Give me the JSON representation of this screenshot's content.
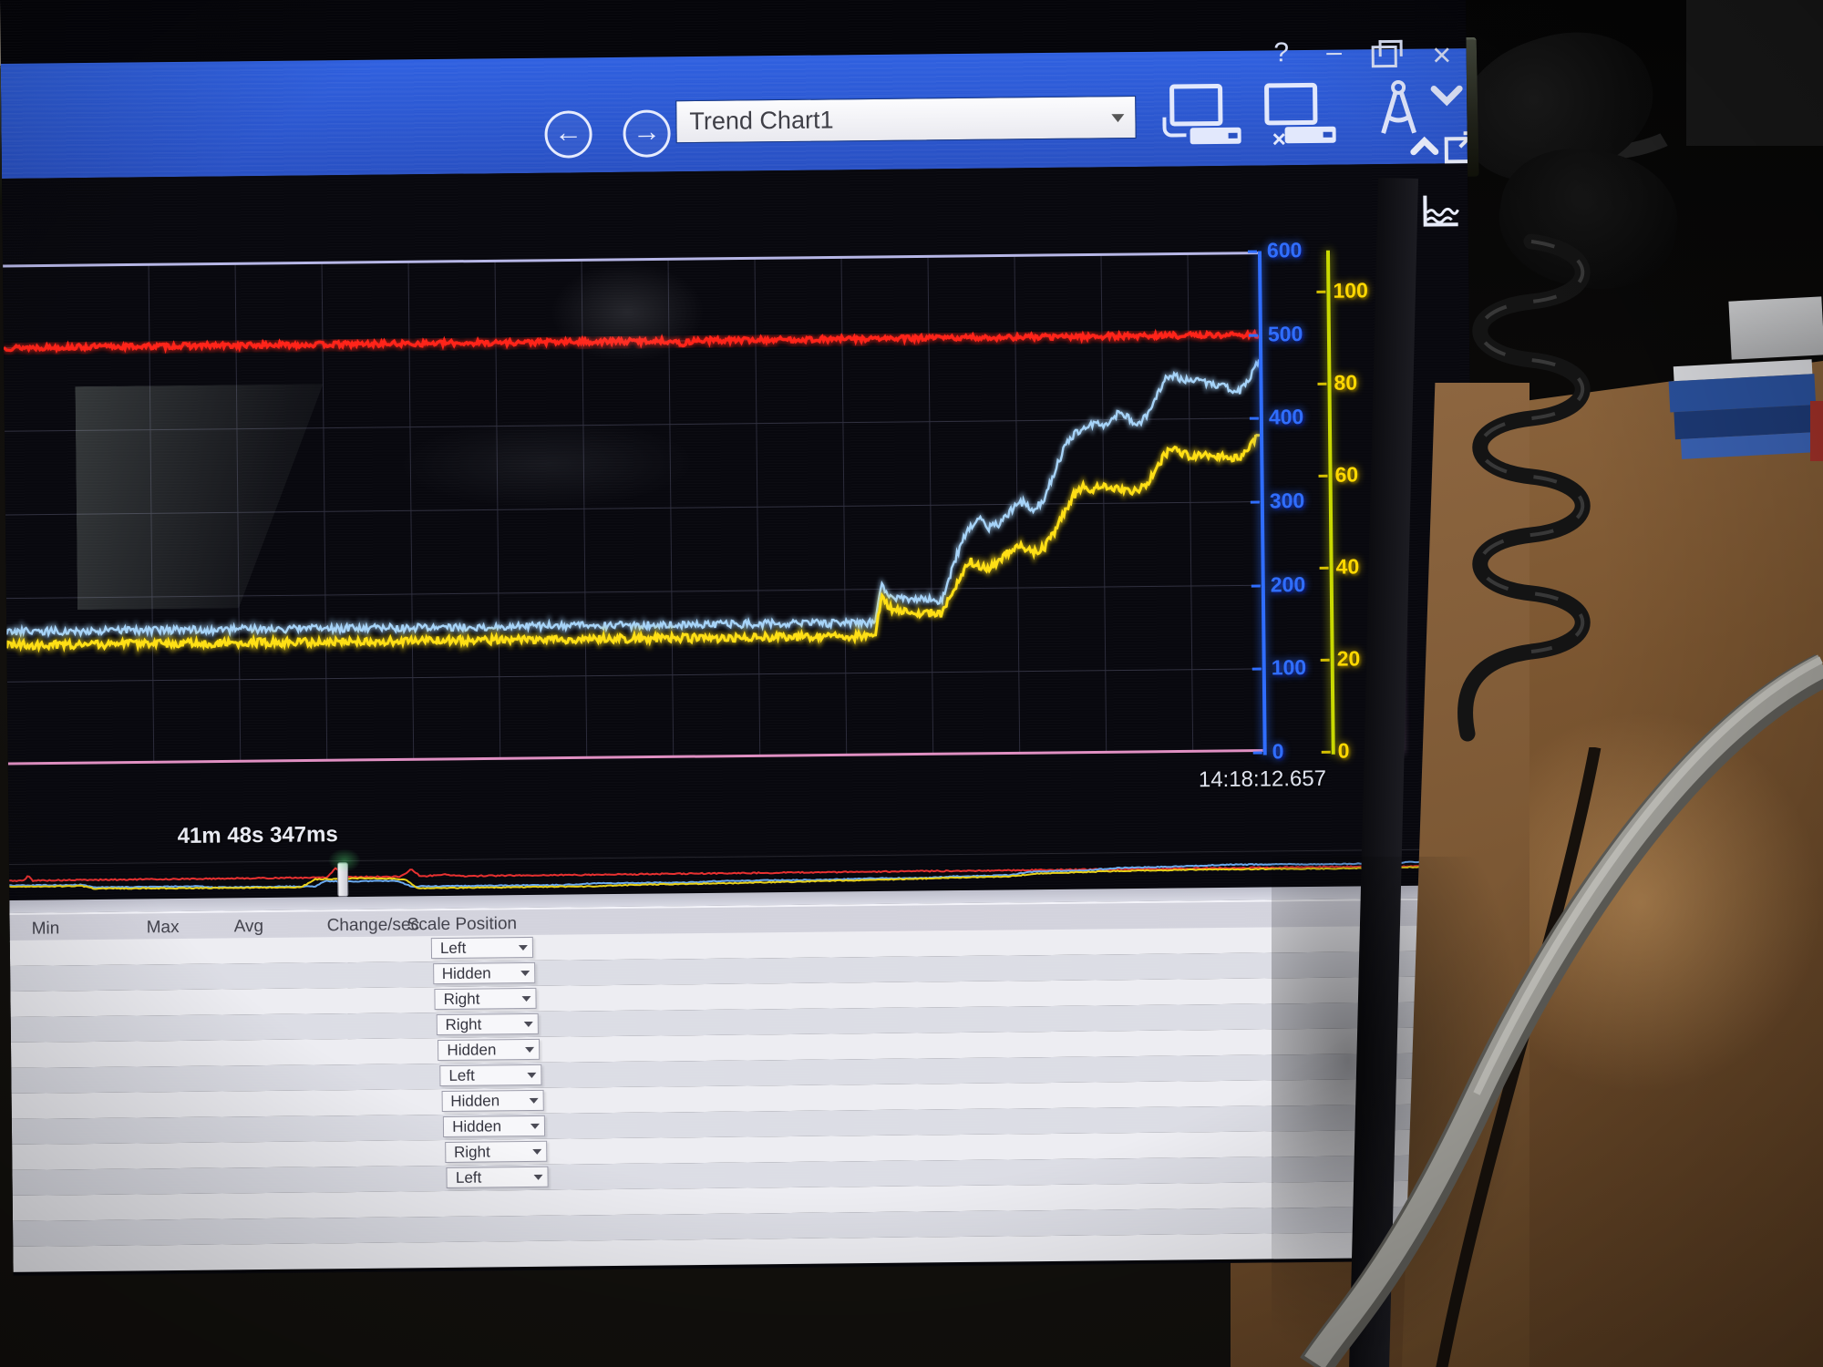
{
  "window": {
    "nav": {
      "back_icon": "←",
      "forward_icon": "→"
    },
    "chart_selector": {
      "value": "Trend Chart1"
    },
    "controls": {
      "help": "?",
      "minimize": "–",
      "close": "×"
    },
    "toolbar_icons": [
      "connect-device",
      "disconnect-device",
      "design-tools",
      "chevron-down"
    ]
  },
  "chart": {
    "end_timestamp": "14:18:12.657",
    "visible_span": "41m 48s 347ms",
    "left_axis": {
      "color": "#2f6dff",
      "ticks": [
        "600",
        "500",
        "400",
        "300",
        "200",
        "100",
        "0"
      ]
    },
    "right_axis": {
      "color": "#ffd800",
      "ticks": [
        "100",
        "80",
        "60",
        "40",
        "20",
        "0"
      ]
    },
    "digital_axis": {
      "top": "True",
      "bottom": "False",
      "color": "#cdb9e8"
    }
  },
  "chart_data": {
    "type": "line",
    "title": "Trend Chart1",
    "x_axis": {
      "span": "41m 48s 347ms",
      "end_time": "14:18:12.657",
      "tick_labels_visible": false
    },
    "left_axis_range": [
      0,
      600
    ],
    "right_axis_range": [
      0,
      100
    ],
    "grid": {
      "on": true
    },
    "series": [
      {
        "name": "red-trace",
        "axis": "left",
        "color": "#ff2318",
        "width": 3.4,
        "noise": 3.2,
        "points": [
          [
            0,
            500
          ],
          [
            0.53,
            500
          ],
          [
            0.54,
            496
          ],
          [
            0.55,
            500
          ],
          [
            1,
            500
          ]
        ]
      },
      {
        "name": "blue-trace",
        "axis": "left",
        "color": "#a6d3f8",
        "width": 2.4,
        "noise": 4.5,
        "points": [
          [
            0,
            160
          ],
          [
            0.692,
            160
          ],
          [
            0.697,
            207
          ],
          [
            0.703,
            192
          ],
          [
            0.71,
            188
          ],
          [
            0.745,
            186
          ],
          [
            0.752,
            215
          ],
          [
            0.758,
            242
          ],
          [
            0.764,
            262
          ],
          [
            0.77,
            275
          ],
          [
            0.776,
            284
          ],
          [
            0.782,
            272
          ],
          [
            0.792,
            277
          ],
          [
            0.8,
            291
          ],
          [
            0.806,
            299
          ],
          [
            0.812,
            303
          ],
          [
            0.818,
            294
          ],
          [
            0.826,
            301
          ],
          [
            0.836,
            338
          ],
          [
            0.846,
            372
          ],
          [
            0.854,
            386
          ],
          [
            0.862,
            393
          ],
          [
            0.87,
            397
          ],
          [
            0.876,
            390
          ],
          [
            0.882,
            401
          ],
          [
            0.888,
            409
          ],
          [
            0.898,
            399
          ],
          [
            0.904,
            396
          ],
          [
            0.91,
            404
          ],
          [
            0.918,
            428
          ],
          [
            0.926,
            450
          ],
          [
            0.932,
            453
          ],
          [
            0.94,
            446
          ],
          [
            0.948,
            444
          ],
          [
            0.954,
            448
          ],
          [
            0.96,
            441
          ],
          [
            0.968,
            439
          ],
          [
            0.976,
            437
          ],
          [
            0.984,
            432
          ],
          [
            0.99,
            442
          ],
          [
            1,
            468
          ]
        ]
      },
      {
        "name": "yellow-trace",
        "axis": "right",
        "color": "#ffdf14",
        "width": 3,
        "noise": 0.8,
        "points": [
          [
            0,
            24
          ],
          [
            0.692,
            24
          ],
          [
            0.697,
            31.5
          ],
          [
            0.705,
            29.5
          ],
          [
            0.72,
            28.7
          ],
          [
            0.745,
            28.4
          ],
          [
            0.755,
            33
          ],
          [
            0.762,
            36.5
          ],
          [
            0.768,
            38.8
          ],
          [
            0.774,
            38
          ],
          [
            0.782,
            37.2
          ],
          [
            0.79,
            38.4
          ],
          [
            0.798,
            40.2
          ],
          [
            0.806,
            41.8
          ],
          [
            0.812,
            41
          ],
          [
            0.82,
            40.5
          ],
          [
            0.828,
            41.4
          ],
          [
            0.838,
            45.5
          ],
          [
            0.85,
            51.3
          ],
          [
            0.858,
            53.5
          ],
          [
            0.866,
            52.5
          ],
          [
            0.874,
            54
          ],
          [
            0.882,
            53.2
          ],
          [
            0.89,
            52.7
          ],
          [
            0.898,
            52.3
          ],
          [
            0.906,
            53
          ],
          [
            0.916,
            56
          ],
          [
            0.924,
            59.5
          ],
          [
            0.93,
            60.6
          ],
          [
            0.938,
            59.8
          ],
          [
            0.946,
            59.3
          ],
          [
            0.954,
            59.8
          ],
          [
            0.962,
            58.9
          ],
          [
            0.97,
            59.2
          ],
          [
            0.978,
            58.5
          ],
          [
            0.986,
            59.4
          ],
          [
            1,
            63.5
          ]
        ]
      }
    ],
    "overview": {
      "handles": [
        0.228,
        0.982
      ],
      "series": [
        {
          "name": "red-history",
          "color": "#e83030",
          "width": 2,
          "noise": 0.02,
          "points": [
            [
              0,
              0.56
            ],
            [
              0.01,
              0.56
            ],
            [
              0.013,
              0.72
            ],
            [
              0.016,
              0.56
            ],
            [
              0.21,
              0.56
            ],
            [
              0.218,
              0.57
            ],
            [
              0.224,
              0.88
            ],
            [
              0.23,
              0.57
            ],
            [
              0.268,
              0.56
            ],
            [
              0.276,
              0.8
            ],
            [
              0.282,
              0.56
            ],
            [
              0.3,
              0.62
            ],
            [
              0.308,
              0.56
            ],
            [
              1,
              0.56
            ]
          ]
        },
        {
          "name": "blue-history",
          "color": "#6aaaf0",
          "width": 2,
          "noise": 0.015,
          "points": [
            [
              0,
              0.4
            ],
            [
              0.05,
              0.4
            ],
            [
              0.058,
              0.31
            ],
            [
              0.13,
              0.31
            ],
            [
              0.138,
              0.27
            ],
            [
              0.21,
              0.27
            ],
            [
              0.216,
              0.44
            ],
            [
              0.23,
              0.42
            ],
            [
              0.266,
              0.42
            ],
            [
              0.276,
              0.23
            ],
            [
              0.38,
              0.23
            ],
            [
              0.4,
              0.27
            ],
            [
              0.47,
              0.27
            ],
            [
              0.49,
              0.31
            ],
            [
              0.56,
              0.31
            ],
            [
              0.59,
              0.34
            ],
            [
              0.63,
              0.34
            ],
            [
              0.65,
              0.38
            ],
            [
              0.685,
              0.4
            ],
            [
              0.7,
              0.5
            ],
            [
              0.74,
              0.54
            ],
            [
              0.76,
              0.6
            ],
            [
              0.8,
              0.63
            ],
            [
              0.835,
              0.67
            ],
            [
              0.87,
              0.67
            ],
            [
              0.9,
              0.655
            ],
            [
              0.95,
              0.67
            ],
            [
              0.982,
              0.73
            ],
            [
              1,
              0.76
            ]
          ]
        },
        {
          "name": "yellow-history",
          "color": "#e8d018",
          "width": 2,
          "noise": 0.015,
          "points": [
            [
              0,
              0.36
            ],
            [
              0.05,
              0.36
            ],
            [
              0.058,
              0.27
            ],
            [
              0.13,
              0.25
            ],
            [
              0.2,
              0.245
            ],
            [
              0.21,
              0.5
            ],
            [
              0.24,
              0.52
            ],
            [
              0.262,
              0.5
            ],
            [
              0.272,
              0.46
            ],
            [
              0.28,
              0.17
            ],
            [
              0.4,
              0.17
            ],
            [
              0.43,
              0.21
            ],
            [
              0.5,
              0.23
            ],
            [
              0.56,
              0.27
            ],
            [
              0.61,
              0.3
            ],
            [
              0.655,
              0.34
            ],
            [
              0.685,
              0.355
            ],
            [
              0.705,
              0.44
            ],
            [
              0.75,
              0.49
            ],
            [
              0.8,
              0.515
            ],
            [
              0.85,
              0.515
            ],
            [
              0.9,
              0.505
            ],
            [
              0.95,
              0.515
            ],
            [
              1,
              0.55
            ]
          ]
        }
      ]
    }
  },
  "table": {
    "headers": [
      "Min",
      "Max",
      "Avg",
      "Change/sec",
      "Scale Position"
    ],
    "scale_positions": [
      "Left",
      "Hidden",
      "Right",
      "Right",
      "Hidden",
      "Left",
      "Hidden",
      "Hidden",
      "Right",
      "Left"
    ]
  }
}
